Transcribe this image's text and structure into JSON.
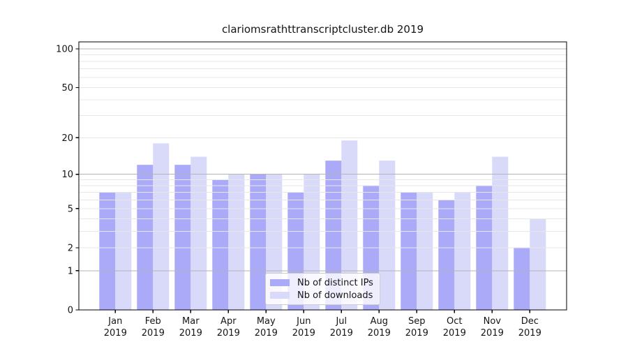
{
  "chart_data": {
    "type": "bar",
    "title": "clariomsrathttranscriptcluster.db 2019",
    "categories": [
      "Jan",
      "Feb",
      "Mar",
      "Apr",
      "May",
      "Jun",
      "Jul",
      "Aug",
      "Sep",
      "Oct",
      "Nov",
      "Dec"
    ],
    "x_tick_year": "2019",
    "series": [
      {
        "name": "Nb of distinct IPs",
        "key": "distinct-ips",
        "color": "#aaaaf9",
        "values": [
          7,
          12,
          12,
          9,
          10,
          7,
          13,
          8,
          7,
          6,
          8,
          2
        ]
      },
      {
        "name": "Nb of downloads",
        "key": "downloads",
        "color": "#d9d9fa",
        "values": [
          7,
          18,
          14,
          10,
          10,
          10,
          19,
          13,
          7,
          7,
          14,
          4
        ]
      }
    ],
    "xlabel": "",
    "ylabel": "",
    "yaxis": {
      "scale": "log1p",
      "tick_values": [
        0,
        1,
        2,
        5,
        10,
        20,
        50,
        100
      ],
      "tick_labels": [
        "0",
        "1",
        "2",
        "5",
        "10",
        "20",
        "50",
        "100"
      ],
      "major_gridlines": [
        1,
        10,
        100
      ],
      "minor_gridlines": [
        2,
        3,
        4,
        5,
        6,
        7,
        8,
        9,
        20,
        30,
        40,
        50,
        60,
        70,
        80,
        90
      ],
      "ylim": [
        0,
        114
      ]
    },
    "legend": {
      "position": "bottom-center"
    },
    "grid": true,
    "colors": {
      "major_grid": "#b3b3b3",
      "minor_grid": "#e7e7e7",
      "axis": "#000000",
      "text": "#151515"
    }
  }
}
